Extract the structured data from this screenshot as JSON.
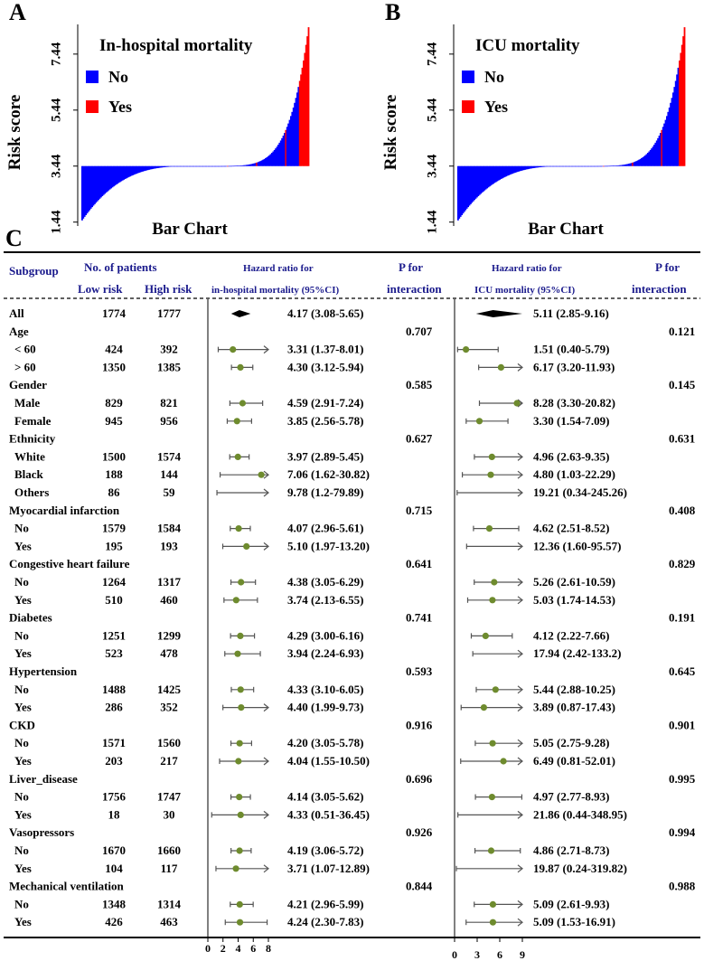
{
  "chart_data": [
    {
      "panel": "A",
      "type": "bar",
      "title": "In-hospital  mortality",
      "xlabel": "Bar Chart",
      "ylabel": "Risk score",
      "yticks": [
        "1.44",
        "3.44",
        "5.44",
        "7.44"
      ],
      "ylim": [
        1.3,
        8.5
      ],
      "baseline": 3.44,
      "legend": [
        {
          "label": "No",
          "color": "#0000ff"
        },
        {
          "label": "Yes",
          "color": "#ff0000"
        }
      ],
      "shape": {
        "min": 1.5,
        "max": 8.4,
        "yes_tail_fraction": 0.04
      }
    },
    {
      "panel": "B",
      "type": "bar",
      "title": "ICU mortality",
      "xlabel": "Bar Chart",
      "ylabel": "Risk score",
      "yticks": [
        "1.44",
        "3.44",
        "5.44",
        "7.44"
      ],
      "ylim": [
        1.3,
        8.5
      ],
      "baseline": 3.44,
      "legend": [
        {
          "label": "No",
          "color": "#0000ff"
        },
        {
          "label": "Yes",
          "color": "#ff0000"
        }
      ],
      "shape": {
        "min": 1.5,
        "max": 8.4,
        "yes_tail_fraction": 0.025
      }
    },
    {
      "panel": "C",
      "type": "table",
      "headers": {
        "subgroup": "Subgroup",
        "patients": "No. of patients",
        "low": "Low risk",
        "high": "High risk",
        "hr1_line1": "Hazard ratio for",
        "hr1_line2": "in-hospital mortality (95%CI)",
        "p_line1": "P for",
        "p_line2": "interaction",
        "hr2_line1": "Hazard ratio for",
        "hr2_line2": "ICU mortality (95%CI)"
      },
      "axis1": {
        "min": 0,
        "max": 8,
        "ticks": [
          "0",
          "2",
          "4",
          "6",
          "8"
        ]
      },
      "axis2": {
        "min": 0,
        "max": 9,
        "ticks": [
          "0",
          "3",
          "6",
          "9"
        ]
      },
      "rows": [
        {
          "label": "All",
          "type": "overall",
          "low": "1774",
          "high": "1777",
          "hr1": 4.17,
          "lo1": 3.08,
          "hi1": 5.65,
          "t1": "4.17 (3.08-5.65)",
          "hr2": 5.11,
          "lo2": 2.85,
          "hi2": 9.16,
          "t2": "5.11 (2.85-9.16)"
        },
        {
          "label": "Age",
          "type": "group",
          "p1": "0.707",
          "p2": "0.121"
        },
        {
          "label": "< 60",
          "type": "sub",
          "low": "424",
          "high": "392",
          "hr1": 3.31,
          "lo1": 1.37,
          "hi1": 8.01,
          "t1": "3.31 (1.37-8.01)",
          "hr2": 1.51,
          "lo2": 0.4,
          "hi2": 5.79,
          "t2": "1.51 (0.40-5.79)"
        },
        {
          "label": "> 60",
          "type": "sub",
          "low": "1350",
          "high": "1385",
          "hr1": 4.3,
          "lo1": 3.12,
          "hi1": 5.94,
          "t1": "4.30 (3.12-5.94)",
          "hr2": 6.17,
          "lo2": 3.2,
          "hi2": 11.93,
          "t2": "6.17 (3.20-11.93)"
        },
        {
          "label": "Gender",
          "type": "group",
          "p1": "0.585",
          "p2": "0.145"
        },
        {
          "label": "Male",
          "type": "sub",
          "low": "829",
          "high": "821",
          "hr1": 4.59,
          "lo1": 2.91,
          "hi1": 7.24,
          "t1": "4.59 (2.91-7.24)",
          "hr2": 8.28,
          "lo2": 3.3,
          "hi2": 20.82,
          "t2": "8.28 (3.30-20.82)"
        },
        {
          "label": "Female",
          "type": "sub",
          "low": "945",
          "high": "956",
          "hr1": 3.85,
          "lo1": 2.56,
          "hi1": 5.78,
          "t1": "3.85 (2.56-5.78)",
          "hr2": 3.3,
          "lo2": 1.54,
          "hi2": 7.09,
          "t2": "3.30 (1.54-7.09)"
        },
        {
          "label": "Ethnicity",
          "type": "group",
          "p1": "0.627",
          "p2": "0.631"
        },
        {
          "label": "White",
          "type": "sub",
          "low": "1500",
          "high": "1574",
          "hr1": 3.97,
          "lo1": 2.89,
          "hi1": 5.45,
          "t1": "3.97 (2.89-5.45)",
          "hr2": 4.96,
          "lo2": 2.63,
          "hi2": 9.35,
          "t2": "4.96 (2.63-9.35)"
        },
        {
          "label": "Black",
          "type": "sub",
          "low": "188",
          "high": "144",
          "hr1": 7.06,
          "lo1": 1.62,
          "hi1": 30.82,
          "t1": "7.06 (1.62-30.82)",
          "hr2": 4.8,
          "lo2": 1.03,
          "hi2": 22.29,
          "t2": "4.80 (1.03-22.29)"
        },
        {
          "label": "Others",
          "type": "sub",
          "low": "86",
          "high": "59",
          "hr1": 9.78,
          "lo1": 1.2,
          "hi1": 79.89,
          "t1": "9.78 (1.2-79.89)",
          "hr2": 19.21,
          "lo2": 0.34,
          "hi2": 245.26,
          "t2": "19.21 (0.34-245.26)"
        },
        {
          "label": "Myocardial infarction",
          "type": "group",
          "p1": "0.715",
          "p2": "0.408"
        },
        {
          "label": "No",
          "type": "sub",
          "low": "1579",
          "high": "1584",
          "hr1": 4.07,
          "lo1": 2.96,
          "hi1": 5.61,
          "t1": "4.07 (2.96-5.61)",
          "hr2": 4.62,
          "lo2": 2.51,
          "hi2": 8.52,
          "t2": "4.62 (2.51-8.52)"
        },
        {
          "label": "Yes",
          "type": "sub",
          "low": "195",
          "high": "193",
          "hr1": 5.1,
          "lo1": 1.97,
          "hi1": 13.2,
          "t1": "5.10 (1.97-13.20)",
          "hr2": 12.36,
          "lo2": 1.6,
          "hi2": 95.57,
          "t2": "12.36 (1.60-95.57)"
        },
        {
          "label": "Congestive heart failure",
          "type": "group",
          "p1": "0.641",
          "p2": "0.829"
        },
        {
          "label": "No",
          "type": "sub",
          "low": "1264",
          "high": "1317",
          "hr1": 4.38,
          "lo1": 3.05,
          "hi1": 6.29,
          "t1": "4.38 (3.05-6.29)",
          "hr2": 5.26,
          "lo2": 2.61,
          "hi2": 10.59,
          "t2": "5.26 (2.61-10.59)"
        },
        {
          "label": "Yes",
          "type": "sub",
          "low": "510",
          "high": "460",
          "hr1": 3.74,
          "lo1": 2.13,
          "hi1": 6.55,
          "t1": "3.74 (2.13-6.55)",
          "hr2": 5.03,
          "lo2": 1.74,
          "hi2": 14.53,
          "t2": "5.03 (1.74-14.53)"
        },
        {
          "label": "Diabetes",
          "type": "group",
          "p1": "0.741",
          "p2": "0.191"
        },
        {
          "label": "No",
          "type": "sub",
          "low": "1251",
          "high": "1299",
          "hr1": 4.29,
          "lo1": 3.0,
          "hi1": 6.16,
          "t1": "4.29 (3.00-6.16)",
          "hr2": 4.12,
          "lo2": 2.22,
          "hi2": 7.66,
          "t2": "4.12 (2.22-7.66)"
        },
        {
          "label": "Yes",
          "type": "sub",
          "low": "523",
          "high": "478",
          "hr1": 3.94,
          "lo1": 2.24,
          "hi1": 6.93,
          "t1": "3.94 (2.24-6.93)",
          "hr2": 17.94,
          "lo2": 2.42,
          "hi2": 133.2,
          "t2": "17.94 (2.42-133.2)"
        },
        {
          "label": "Hypertension",
          "type": "group",
          "p1": "0.593",
          "p2": "0.645"
        },
        {
          "label": "No",
          "type": "sub",
          "low": "1488",
          "high": "1425",
          "hr1": 4.33,
          "lo1": 3.1,
          "hi1": 6.05,
          "t1": "4.33 (3.10-6.05)",
          "hr2": 5.44,
          "lo2": 2.88,
          "hi2": 10.25,
          "t2": "5.44 (2.88-10.25)"
        },
        {
          "label": "Yes",
          "type": "sub",
          "low": "286",
          "high": "352",
          "hr1": 4.4,
          "lo1": 1.99,
          "hi1": 9.73,
          "t1": "4.40 (1.99-9.73)",
          "hr2": 3.89,
          "lo2": 0.87,
          "hi2": 17.43,
          "t2": "3.89 (0.87-17.43)"
        },
        {
          "label": "CKD",
          "type": "group",
          "p1": "0.916",
          "p2": "0.901"
        },
        {
          "label": "No",
          "type": "sub",
          "low": "1571",
          "high": "1560",
          "hr1": 4.2,
          "lo1": 3.05,
          "hi1": 5.78,
          "t1": "4.20 (3.05-5.78)",
          "hr2": 5.05,
          "lo2": 2.75,
          "hi2": 9.28,
          "t2": "5.05 (2.75-9.28)"
        },
        {
          "label": "Yes",
          "type": "sub",
          "low": "203",
          "high": "217",
          "hr1": 4.04,
          "lo1": 1.55,
          "hi1": 10.5,
          "t1": "4.04 (1.55-10.50)",
          "hr2": 6.49,
          "lo2": 0.81,
          "hi2": 52.01,
          "t2": "6.49 (0.81-52.01)"
        },
        {
          "label": "Liver_disease",
          "type": "group",
          "p1": "0.696",
          "p2": "0.995"
        },
        {
          "label": "No",
          "type": "sub",
          "low": "1756",
          "high": "1747",
          "hr1": 4.14,
          "lo1": 3.05,
          "hi1": 5.62,
          "t1": "4.14 (3.05-5.62)",
          "hr2": 4.97,
          "lo2": 2.77,
          "hi2": 8.93,
          "t2": "4.97 (2.77-8.93)"
        },
        {
          "label": "Yes",
          "type": "sub",
          "low": "18",
          "high": "30",
          "hr1": 4.33,
          "lo1": 0.51,
          "hi1": 36.45,
          "t1": "4.33 (0.51-36.45)",
          "hr2": 21.86,
          "lo2": 0.44,
          "hi2": 348.95,
          "t2": "21.86 (0.44-348.95)"
        },
        {
          "label": "Vasopressors",
          "type": "group",
          "p1": "0.926",
          "p2": "0.994"
        },
        {
          "label": "No",
          "type": "sub",
          "low": "1670",
          "high": "1660",
          "hr1": 4.19,
          "lo1": 3.06,
          "hi1": 5.72,
          "t1": "4.19 (3.06-5.72)",
          "hr2": 4.86,
          "lo2": 2.71,
          "hi2": 8.73,
          "t2": "4.86 (2.71-8.73)"
        },
        {
          "label": "Yes",
          "type": "sub",
          "low": "104",
          "high": "117",
          "hr1": 3.71,
          "lo1": 1.07,
          "hi1": 12.89,
          "t1": "3.71 (1.07-12.89)",
          "hr2": 19.87,
          "lo2": 0.24,
          "hi2": 319.82,
          "t2": "19.87 (0.24-319.82)"
        },
        {
          "label": "Mechanical ventilation",
          "type": "group",
          "p1": "0.844",
          "p2": "0.988"
        },
        {
          "label": "No",
          "type": "sub",
          "low": "1348",
          "high": "1314",
          "hr1": 4.21,
          "lo1": 2.96,
          "hi1": 5.99,
          "t1": "4.21 (2.96-5.99)",
          "hr2": 5.09,
          "lo2": 2.61,
          "hi2": 9.93,
          "t2": "5.09 (2.61-9.93)"
        },
        {
          "label": "Yes",
          "type": "sub",
          "low": "426",
          "high": "463",
          "hr1": 4.24,
          "lo1": 2.3,
          "hi1": 7.83,
          "t1": "4.24 (2.30-7.83)",
          "hr2": 5.09,
          "lo2": 1.53,
          "hi2": 16.91,
          "t2": "5.09 (1.53-16.91)"
        }
      ]
    }
  ],
  "labels": {
    "panel_a": "A",
    "panel_b": "B",
    "panel_c": "C"
  },
  "colors": {
    "no": "#0000ff",
    "yes": "#ff0000",
    "point": "#6e8b2e",
    "navy": "#1a1a8c",
    "line": "#555555"
  }
}
